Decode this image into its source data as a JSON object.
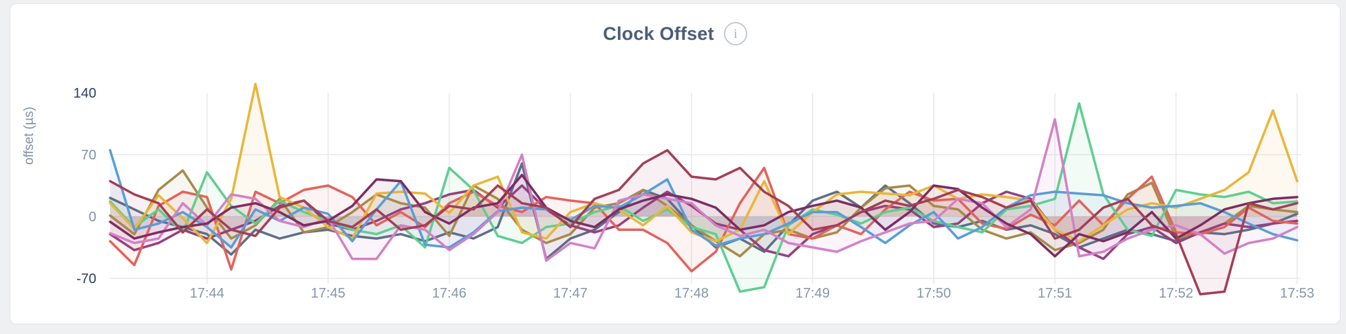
{
  "header": {
    "title": "Clock Offset",
    "info_glyph": "i"
  },
  "chart_data": {
    "type": "line",
    "title": "Clock Offset",
    "ylabel": "offset (µs)",
    "legend": "none",
    "grid": true,
    "y_ticks": [
      140,
      70,
      0,
      -70
    ],
    "ylim_visible": [
      -70,
      140
    ],
    "baseline": 0,
    "x_ticks": [
      "17:44",
      "17:45",
      "17:46",
      "17:47",
      "17:48",
      "17:49",
      "17:50",
      "17:51",
      "17:52",
      "17:53"
    ],
    "x_tick_values": [
      44,
      45,
      46,
      47,
      48,
      49,
      50,
      51,
      52,
      53
    ],
    "x_start_minutes": 43.2,
    "x_step_minutes": 0.2,
    "grid_color": "#e9e9eb",
    "series": [
      {
        "name": "slate",
        "color": "#5F6E88",
        "values": [
          21,
          8,
          -5,
          -12,
          -20,
          -43,
          -15,
          -25,
          -18,
          -15,
          -22,
          -25,
          -20,
          -28,
          -18,
          -25,
          -12,
          60,
          -48,
          -25,
          -15,
          5,
          30,
          20,
          -10,
          -35,
          -25,
          -40,
          -10,
          18,
          28,
          10,
          35,
          15,
          -8,
          -12,
          -5,
          -15,
          -10,
          -20,
          -35,
          -25,
          -15,
          -20,
          -28,
          -18,
          -20,
          -15,
          -8,
          3
        ]
      },
      {
        "name": "olive",
        "color": "#A78A49",
        "values": [
          1,
          -20,
          30,
          52,
          10,
          -25,
          -10,
          20,
          -18,
          -12,
          5,
          25,
          15,
          10,
          -22,
          35,
          20,
          -15,
          -30,
          -20,
          10,
          15,
          30,
          12,
          -10,
          -28,
          -45,
          -20,
          -15,
          -25,
          -18,
          10,
          32,
          35,
          12,
          8,
          -15,
          -25,
          -18,
          -38,
          -30,
          -15,
          25,
          38,
          -25,
          -18,
          -8,
          12,
          8,
          5
        ]
      },
      {
        "name": "plum",
        "color": "#96407E",
        "values": [
          -20,
          -38,
          -30,
          -15,
          -25,
          -15,
          -5,
          12,
          18,
          -8,
          -15,
          -5,
          8,
          15,
          25,
          30,
          10,
          35,
          8,
          -10,
          -18,
          -10,
          10,
          28,
          12,
          -8,
          -15,
          -38,
          -45,
          -20,
          -10,
          5,
          12,
          8,
          -12,
          -8,
          15,
          28,
          20,
          -15,
          -35,
          -48,
          -20,
          -12,
          -30,
          -18,
          -8,
          -12,
          -8,
          -5
        ]
      },
      {
        "name": "coral",
        "color": "#E2635B",
        "values": [
          -28,
          -55,
          12,
          28,
          22,
          -60,
          28,
          15,
          30,
          35,
          22,
          -10,
          5,
          -12,
          15,
          28,
          12,
          5,
          22,
          18,
          15,
          -15,
          -15,
          -30,
          -62,
          -40,
          15,
          55,
          -20,
          -25,
          -10,
          -20,
          8,
          28,
          18,
          20,
          -8,
          -14,
          2,
          -10,
          18,
          -10,
          20,
          45,
          -18,
          -20,
          -12,
          10,
          -5,
          -8
        ]
      },
      {
        "name": "green",
        "color": "#5FCE90",
        "values": [
          17,
          -12,
          8,
          -18,
          50,
          12,
          -8,
          18,
          5,
          -5,
          -15,
          -20,
          -10,
          -35,
          55,
          30,
          -22,
          -30,
          -12,
          -8,
          5,
          12,
          -5,
          8,
          -12,
          -20,
          -85,
          -80,
          -10,
          8,
          2,
          -8,
          5,
          10,
          -5,
          -12,
          -18,
          8,
          12,
          20,
          128,
          25,
          -15,
          -22,
          30,
          25,
          22,
          28,
          15,
          17
        ]
      },
      {
        "name": "amber",
        "color": "#E9B63B",
        "values": [
          15,
          -14,
          24,
          -2,
          -30,
          20,
          150,
          22,
          10,
          -12,
          -25,
          26,
          28,
          26,
          4,
          35,
          45,
          -18,
          -25,
          5,
          15,
          8,
          -10,
          12,
          -18,
          -28,
          -15,
          40,
          -20,
          5,
          25,
          28,
          26,
          24,
          35,
          20,
          25,
          22,
          18,
          -15,
          -28,
          -10,
          8,
          15,
          10,
          20,
          30,
          50,
          120,
          40
        ]
      },
      {
        "name": "blue",
        "color": "#5C9CD6",
        "values": [
          75,
          -15,
          -8,
          5,
          -12,
          -35,
          8,
          -5,
          10,
          3,
          -28,
          8,
          40,
          -32,
          -35,
          -18,
          6,
          10,
          8,
          -4,
          12,
          10,
          25,
          42,
          -15,
          -33,
          -25,
          -20,
          -8,
          5,
          5,
          -12,
          -30,
          -10,
          5,
          -25,
          -12,
          10,
          24,
          28,
          26,
          24,
          15,
          10,
          12,
          15,
          5,
          -8,
          -20,
          -27
        ]
      },
      {
        "name": "orchid",
        "color": "#D282C6",
        "values": [
          -19,
          -30,
          -25,
          15,
          -10,
          25,
          20,
          -5,
          -12,
          -2,
          -48,
          -48,
          -10,
          -15,
          -38,
          -20,
          5,
          70,
          -50,
          -30,
          -36,
          18,
          25,
          20,
          15,
          -10,
          -22,
          -15,
          -30,
          -35,
          -40,
          -28,
          -18,
          -8,
          -5,
          20,
          15,
          -12,
          8,
          110,
          -45,
          -40,
          -25,
          -15,
          -10,
          -20,
          -42,
          -30,
          -25,
          -12
        ]
      },
      {
        "name": "purple",
        "color": "#7C2D62",
        "values": [
          -6,
          -25,
          -18,
          -12,
          -8,
          10,
          15,
          5,
          -10,
          -5,
          12,
          42,
          40,
          5,
          -8,
          10,
          15,
          47,
          10,
          -5,
          -12,
          8,
          18,
          25,
          20,
          10,
          -15,
          -10,
          5,
          12,
          18,
          10,
          -15,
          5,
          35,
          31,
          10,
          -8,
          -20,
          -45,
          -20,
          -28,
          -18,
          5,
          -25,
          -10,
          8,
          15,
          20,
          22
        ]
      },
      {
        "name": "maroon",
        "color": "#A23F55",
        "values": [
          40,
          25,
          15,
          -18,
          8,
          -15,
          -22,
          10,
          18,
          -5,
          -12,
          8,
          -15,
          -10,
          12,
          8,
          35,
          15,
          10,
          -12,
          20,
          30,
          60,
          75,
          45,
          42,
          55,
          28,
          12,
          -15,
          -10,
          5,
          18,
          12,
          20,
          30,
          22,
          10,
          18,
          -25,
          -15,
          10,
          20,
          -10,
          -20,
          -88,
          -85,
          15,
          8,
          15
        ]
      }
    ]
  }
}
